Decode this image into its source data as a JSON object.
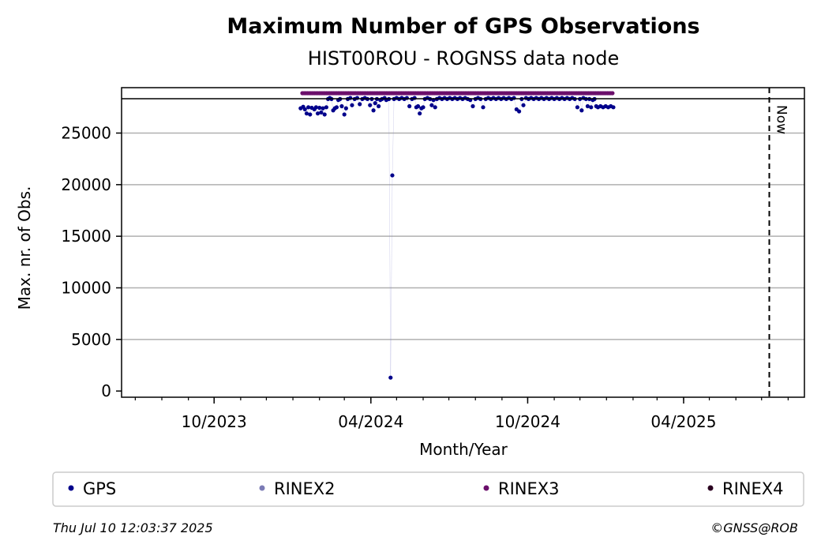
{
  "chart_data": {
    "type": "scatter",
    "title": "Maximum Number of GPS Observations",
    "subtitle": "HIST00ROU - ROGNSS data node",
    "xlabel": "Month/Year",
    "ylabel": "Max. nr. of Obs.",
    "x_ticks": [
      "10/2023",
      "04/2024",
      "10/2024",
      "04/2025"
    ],
    "x_range": [
      "2023-06-15",
      "2025-08-20"
    ],
    "y_ticks": [
      0,
      5000,
      10000,
      15000,
      20000,
      25000
    ],
    "ylim": [
      -600,
      29400
    ],
    "grid": "horizontal",
    "now_date": "2025-07-10",
    "now_label": "Now",
    "series": [
      {
        "name": "GPS",
        "color": "#00008b",
        "points": [
          [
            "2024-01-10",
            27400
          ],
          [
            "2024-01-13",
            27550
          ],
          [
            "2024-01-15",
            27300
          ],
          [
            "2024-01-17",
            26900
          ],
          [
            "2024-01-19",
            27500
          ],
          [
            "2024-01-21",
            26800
          ],
          [
            "2024-01-23",
            27450
          ],
          [
            "2024-01-26",
            27300
          ],
          [
            "2024-01-28",
            27500
          ],
          [
            "2024-01-30",
            26900
          ],
          [
            "2024-02-01",
            27450
          ],
          [
            "2024-02-03",
            27000
          ],
          [
            "2024-02-05",
            27400
          ],
          [
            "2024-02-07",
            26800
          ],
          [
            "2024-02-09",
            27500
          ],
          [
            "2024-02-11",
            28300
          ],
          [
            "2024-02-13",
            28400
          ],
          [
            "2024-02-15",
            28300
          ],
          [
            "2024-02-17",
            27200
          ],
          [
            "2024-02-19",
            27400
          ],
          [
            "2024-02-21",
            27500
          ],
          [
            "2024-02-23",
            28200
          ],
          [
            "2024-02-25",
            28300
          ],
          [
            "2024-02-27",
            27600
          ],
          [
            "2024-03-01",
            26800
          ],
          [
            "2024-03-03",
            27400
          ],
          [
            "2024-03-05",
            28300
          ],
          [
            "2024-03-08",
            28400
          ],
          [
            "2024-03-10",
            27700
          ],
          [
            "2024-03-13",
            28300
          ],
          [
            "2024-03-16",
            28400
          ],
          [
            "2024-03-19",
            27800
          ],
          [
            "2024-03-22",
            28300
          ],
          [
            "2024-03-25",
            28400
          ],
          [
            "2024-03-28",
            28300
          ],
          [
            "2024-03-31",
            27700
          ],
          [
            "2024-04-02",
            28300
          ],
          [
            "2024-04-04",
            27200
          ],
          [
            "2024-04-06",
            27900
          ],
          [
            "2024-04-08",
            28300
          ],
          [
            "2024-04-10",
            27600
          ],
          [
            "2024-04-12",
            28200
          ],
          [
            "2024-04-14",
            28300
          ],
          [
            "2024-04-17",
            28400
          ],
          [
            "2024-04-19",
            28200
          ],
          [
            "2024-04-22",
            28300
          ],
          [
            "2024-04-24",
            1300
          ],
          [
            "2024-04-26",
            20900
          ],
          [
            "2024-04-28",
            28300
          ],
          [
            "2024-05-01",
            28400
          ],
          [
            "2024-05-04",
            28300
          ],
          [
            "2024-05-07",
            28400
          ],
          [
            "2024-05-10",
            28300
          ],
          [
            "2024-05-13",
            28400
          ],
          [
            "2024-05-16",
            27600
          ],
          [
            "2024-05-19",
            28300
          ],
          [
            "2024-05-22",
            28400
          ],
          [
            "2024-05-24",
            27500
          ],
          [
            "2024-05-26",
            27600
          ],
          [
            "2024-05-28",
            26900
          ],
          [
            "2024-05-30",
            27400
          ],
          [
            "2024-06-01",
            27500
          ],
          [
            "2024-06-03",
            28300
          ],
          [
            "2024-06-06",
            28400
          ],
          [
            "2024-06-09",
            28300
          ],
          [
            "2024-06-11",
            27700
          ],
          [
            "2024-06-13",
            28200
          ],
          [
            "2024-06-15",
            27500
          ],
          [
            "2024-06-17",
            28300
          ],
          [
            "2024-06-20",
            28400
          ],
          [
            "2024-06-23",
            28300
          ],
          [
            "2024-06-26",
            28400
          ],
          [
            "2024-06-29",
            28300
          ],
          [
            "2024-07-02",
            28400
          ],
          [
            "2024-07-05",
            28300
          ],
          [
            "2024-07-08",
            28400
          ],
          [
            "2024-07-11",
            28300
          ],
          [
            "2024-07-14",
            28400
          ],
          [
            "2024-07-17",
            28300
          ],
          [
            "2024-07-20",
            28400
          ],
          [
            "2024-07-23",
            28300
          ],
          [
            "2024-07-26",
            28200
          ],
          [
            "2024-07-29",
            27600
          ],
          [
            "2024-08-01",
            28300
          ],
          [
            "2024-08-04",
            28400
          ],
          [
            "2024-08-07",
            28300
          ],
          [
            "2024-08-10",
            27500
          ],
          [
            "2024-08-13",
            28300
          ],
          [
            "2024-08-16",
            28400
          ],
          [
            "2024-08-19",
            28300
          ],
          [
            "2024-08-22",
            28400
          ],
          [
            "2024-08-25",
            28300
          ],
          [
            "2024-08-28",
            28400
          ],
          [
            "2024-08-31",
            28300
          ],
          [
            "2024-09-03",
            28400
          ],
          [
            "2024-09-06",
            28300
          ],
          [
            "2024-09-09",
            28400
          ],
          [
            "2024-09-12",
            28300
          ],
          [
            "2024-09-15",
            28400
          ],
          [
            "2024-09-18",
            27300
          ],
          [
            "2024-09-21",
            27100
          ],
          [
            "2024-09-24",
            28300
          ],
          [
            "2024-09-26",
            27700
          ],
          [
            "2024-09-29",
            28400
          ],
          [
            "2024-10-02",
            28300
          ],
          [
            "2024-10-05",
            28400
          ],
          [
            "2024-10-08",
            28300
          ],
          [
            "2024-10-11",
            28400
          ],
          [
            "2024-10-14",
            28300
          ],
          [
            "2024-10-17",
            28400
          ],
          [
            "2024-10-20",
            28300
          ],
          [
            "2024-10-23",
            28400
          ],
          [
            "2024-10-26",
            28300
          ],
          [
            "2024-10-29",
            28400
          ],
          [
            "2024-11-01",
            28300
          ],
          [
            "2024-11-04",
            28400
          ],
          [
            "2024-11-07",
            28300
          ],
          [
            "2024-11-10",
            28400
          ],
          [
            "2024-11-13",
            28300
          ],
          [
            "2024-11-16",
            28400
          ],
          [
            "2024-11-19",
            28300
          ],
          [
            "2024-11-22",
            28400
          ],
          [
            "2024-11-25",
            28300
          ],
          [
            "2024-11-28",
            27500
          ],
          [
            "2024-12-01",
            28300
          ],
          [
            "2024-12-03",
            27200
          ],
          [
            "2024-12-05",
            28400
          ],
          [
            "2024-12-08",
            28300
          ],
          [
            "2024-12-10",
            27600
          ],
          [
            "2024-12-12",
            28300
          ],
          [
            "2024-12-14",
            27500
          ],
          [
            "2024-12-16",
            28200
          ],
          [
            "2024-12-18",
            28300
          ],
          [
            "2024-12-20",
            27600
          ],
          [
            "2024-12-22",
            27500
          ],
          [
            "2024-12-25",
            27600
          ],
          [
            "2024-12-28",
            27500
          ],
          [
            "2024-12-31",
            27600
          ],
          [
            "2025-01-03",
            27500
          ],
          [
            "2025-01-06",
            27600
          ],
          [
            "2025-01-09",
            27500
          ]
        ]
      },
      {
        "name": "RINEX2",
        "color": "#7b7bb5",
        "points": []
      },
      {
        "name": "RINEX3",
        "color": "#6b0f6b",
        "range": [
          "2024-01-12",
          "2025-01-09"
        ],
        "note_value": "above plot top"
      },
      {
        "name": "RINEX4",
        "color": "#2b0020",
        "points": []
      }
    ],
    "legend": [
      "GPS",
      "RINEX2",
      "RINEX3",
      "RINEX4"
    ],
    "legend_placement": "bottom"
  },
  "footer": {
    "timestamp": "Thu Jul 10 12:03:37 2025",
    "copyright": "©GNSS@ROB"
  }
}
